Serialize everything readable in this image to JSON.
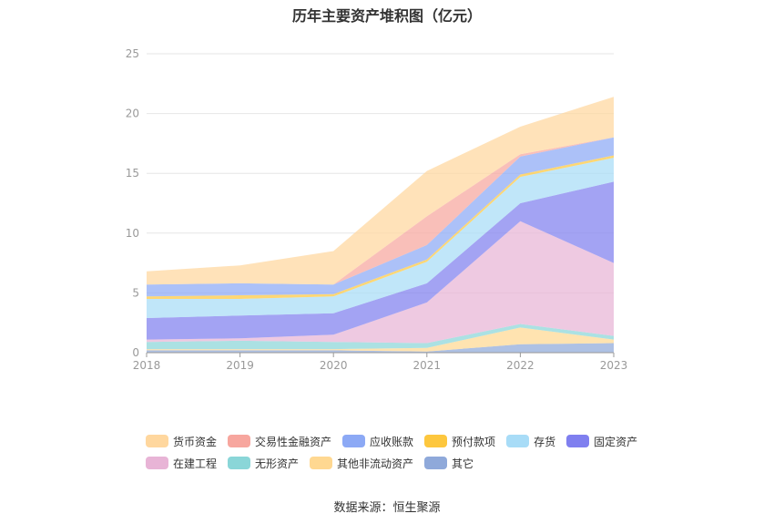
{
  "chart_data": {
    "type": "area",
    "stacked": true,
    "title": "历年主要资产堆积图（亿元）",
    "x": [
      "2018",
      "2019",
      "2020",
      "2021",
      "2022",
      "2023"
    ],
    "ylim": [
      0,
      25
    ],
    "yticks": [
      0,
      5,
      10,
      15,
      20,
      25
    ],
    "grid": true,
    "legend_position": "bottom",
    "series": [
      {
        "name": "其它",
        "color": "#8FA9DA",
        "values": [
          0.2,
          0.2,
          0.2,
          0.1,
          0.7,
          0.8
        ]
      },
      {
        "name": "其他非流动资产",
        "color": "#FFD891",
        "values": [
          0.1,
          0.1,
          0.1,
          0.3,
          1.4,
          0.3
        ]
      },
      {
        "name": "无形资产",
        "color": "#8AD6D8",
        "values": [
          0.6,
          0.7,
          0.6,
          0.4,
          0.3,
          0.3
        ]
      },
      {
        "name": "在建工程",
        "color": "#E8B4D6",
        "values": [
          0.2,
          0.2,
          0.6,
          3.4,
          8.6,
          6.1
        ]
      },
      {
        "name": "固定资产",
        "color": "#7F7FEF",
        "values": [
          1.8,
          1.9,
          1.8,
          1.6,
          1.5,
          6.8
        ]
      },
      {
        "name": "存货",
        "color": "#A8DCF7",
        "values": [
          1.6,
          1.4,
          1.4,
          1.8,
          2.2,
          2.0
        ]
      },
      {
        "name": "预付款项",
        "color": "#FDC73E",
        "values": [
          0.2,
          0.3,
          0.2,
          0.2,
          0.2,
          0.2
        ]
      },
      {
        "name": "应收账款",
        "color": "#8CA9F5",
        "values": [
          1.0,
          1.0,
          0.8,
          1.2,
          1.5,
          1.5
        ]
      },
      {
        "name": "交易性金融资产",
        "color": "#F7A69E",
        "values": [
          0,
          0,
          0,
          2.4,
          0.2,
          0
        ]
      },
      {
        "name": "货币资金",
        "color": "#FFD79E",
        "values": [
          1.1,
          1.5,
          2.8,
          3.8,
          2.3,
          3.4
        ]
      }
    ]
  },
  "legend": {
    "rows": [
      [
        {
          "label": "货币资金",
          "color": "#FFD79E"
        },
        {
          "label": "交易性金融资产",
          "color": "#F7A69E"
        },
        {
          "label": "应收账款",
          "color": "#8CA9F5"
        },
        {
          "label": "预付款项",
          "color": "#FDC73E"
        },
        {
          "label": "存货",
          "color": "#A8DCF7"
        },
        {
          "label": "固定资产",
          "color": "#7F7FEF"
        }
      ],
      [
        {
          "label": "在建工程",
          "color": "#E8B4D6"
        },
        {
          "label": "无形资产",
          "color": "#8AD6D8"
        },
        {
          "label": "其他非流动资产",
          "color": "#FFD891"
        },
        {
          "label": "其它",
          "color": "#8FA9DA"
        }
      ]
    ]
  },
  "source": "数据来源：恒生聚源"
}
